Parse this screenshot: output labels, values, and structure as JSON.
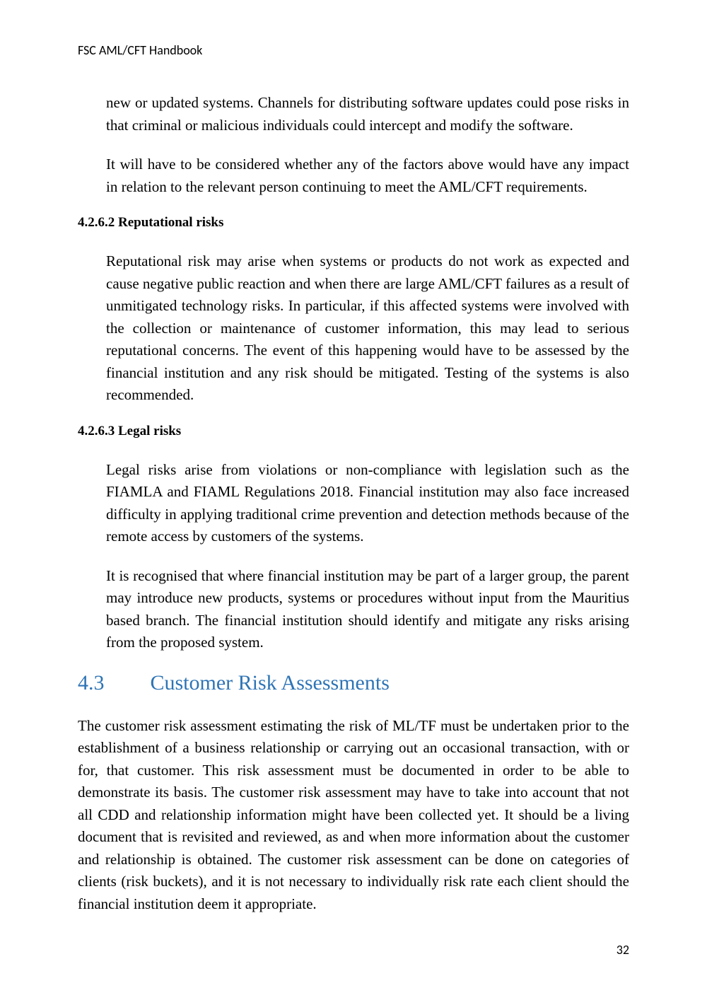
{
  "header": {
    "title": "FSC AML/CFT Handbook"
  },
  "paragraphs": {
    "p1": "new or updated systems. Channels for distributing software updates could pose risks in that criminal or malicious individuals could intercept and modify the software.",
    "p2": "It will have to be considered whether any of the factors above would have any impact in relation to the relevant person continuing to meet the AML/CFT requirements."
  },
  "sub1": {
    "heading": "4.2.6.2 Reputational risks",
    "p1": "Reputational risk may arise when systems or products do not work as expected and cause negative public reaction and when there are large AML/CFT failures as a result of unmitigated technology risks. In particular, if this affected systems were involved with the collection or maintenance of customer information, this may lead to serious reputational concerns. The event of this happening would have to be assessed by the financial institution and any risk should be mitigated. Testing of the systems is also recommended."
  },
  "sub2": {
    "heading": "4.2.6.3 Legal risks",
    "p1": "Legal risks arise from violations or non-compliance with legislation such as the FIAMLA and FIAML Regulations 2018. Financial institution may also face increased difficulty in applying traditional crime prevention and detection methods because of the remote access by customers of the systems.",
    "p2": "It is recognised that where financial institution may be part of a larger group, the parent may introduce new products, systems or procedures without input from the Mauritius based branch. The financial institution should identify and mitigate any risks arising from the proposed system."
  },
  "section": {
    "number": "4.3",
    "title": "Customer Risk Assessments",
    "p1": "The customer risk assessment estimating the risk of ML/TF must be undertaken prior to the establishment of a business relationship or carrying out an occasional transaction, with or for, that customer. This risk assessment must be documented in order to be able to demonstrate its basis. The customer risk assessment may have to take into account that not all CDD and relationship information might have been collected yet. It should be a living document that is revisited and reviewed, as and when more information about the customer and relationship is obtained.  The customer risk assessment can be done on categories of clients (risk buckets), and it is not necessary to individually risk rate each client should the financial institution deem it appropriate."
  },
  "footer": {
    "page_number": "32"
  }
}
